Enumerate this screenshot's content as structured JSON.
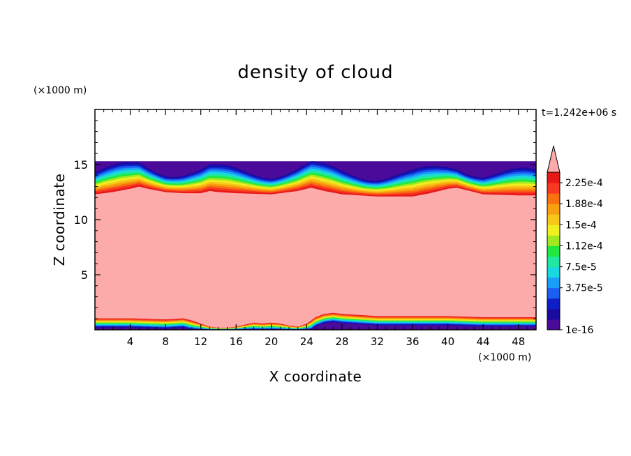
{
  "chart_data": {
    "type": "heatmap",
    "title": "density of cloud",
    "xlabel": "X coordinate",
    "ylabel": "Z coordinate",
    "x_unit": "(×1000 m)",
    "y_unit": "(×1000 m)",
    "time_label": "t=1.242e+06 s",
    "xlim": [
      0,
      50
    ],
    "ylim": [
      0,
      20
    ],
    "x_ticks": [
      "4",
      "8",
      "12",
      "16",
      "20",
      "24",
      "28",
      "32",
      "36",
      "40",
      "44",
      "48"
    ],
    "x_tick_values": [
      4,
      8,
      12,
      16,
      20,
      24,
      28,
      32,
      36,
      40,
      44,
      48
    ],
    "y_ticks": [
      "5",
      "10",
      "15"
    ],
    "y_tick_values": [
      5,
      10,
      15
    ],
    "domain_top": 15.3,
    "colorbar": {
      "labels": [
        "2.25e-4",
        "1.88e-4",
        "1.5e-4",
        "1.12e-4",
        "7.5e-5",
        "3.75e-5",
        "1e-16"
      ],
      "label_values": [
        0.000225,
        0.0001875,
        0.00015,
        0.0001125,
        7.5e-05,
        3.75e-05,
        1e-16
      ],
      "colors": [
        "#4a0a9a",
        "#1a0aa0",
        "#0f1fc8",
        "#1a5ff0",
        "#1a9ff8",
        "#18d8e0",
        "#20e8a0",
        "#20e840",
        "#a0e820",
        "#f0f020",
        "#f8c818",
        "#f8a010",
        "#f87010",
        "#f83820",
        "#e81818"
      ],
      "over_color": "#fcaaaa",
      "extend": "max"
    },
    "field": {
      "saturated_color": "#fcaaaa",
      "upper_cloud_base": [
        [
          0,
          12.3
        ],
        [
          2,
          12.5
        ],
        [
          4,
          12.8
        ],
        [
          5,
          13.0
        ],
        [
          6,
          12.8
        ],
        [
          8,
          12.5
        ],
        [
          10,
          12.4
        ],
        [
          12,
          12.4
        ],
        [
          13,
          12.6
        ],
        [
          14,
          12.5
        ],
        [
          16,
          12.4
        ],
        [
          20,
          12.3
        ],
        [
          23,
          12.6
        ],
        [
          24.5,
          12.9
        ],
        [
          26,
          12.6
        ],
        [
          28,
          12.3
        ],
        [
          32,
          12.1
        ],
        [
          36,
          12.1
        ],
        [
          38,
          12.4
        ],
        [
          40,
          12.8
        ],
        [
          41,
          12.9
        ],
        [
          42,
          12.7
        ],
        [
          44,
          12.3
        ],
        [
          48,
          12.2
        ],
        [
          50,
          12.2
        ]
      ],
      "upper_cloud_top": [
        [
          0,
          15.3
        ],
        [
          50,
          15.3
        ]
      ],
      "lower_cloud_top": [
        [
          0,
          1.1
        ],
        [
          4,
          1.1
        ],
        [
          8,
          1.0
        ],
        [
          10,
          1.1
        ],
        [
          11,
          0.9
        ],
        [
          12,
          0.6
        ],
        [
          13,
          0.3
        ],
        [
          14,
          0.2
        ],
        [
          15,
          0.2
        ],
        [
          16,
          0.3
        ],
        [
          17,
          0.5
        ],
        [
          18,
          0.7
        ],
        [
          19,
          0.6
        ],
        [
          20,
          0.7
        ],
        [
          21,
          0.6
        ],
        [
          22,
          0.4
        ],
        [
          23,
          0.3
        ],
        [
          24,
          0.6
        ],
        [
          25,
          1.2
        ],
        [
          26,
          1.5
        ],
        [
          27,
          1.6
        ],
        [
          28,
          1.5
        ],
        [
          32,
          1.3
        ],
        [
          36,
          1.3
        ],
        [
          40,
          1.3
        ],
        [
          44,
          1.2
        ],
        [
          48,
          1.2
        ],
        [
          50,
          1.2
        ]
      ]
    }
  }
}
